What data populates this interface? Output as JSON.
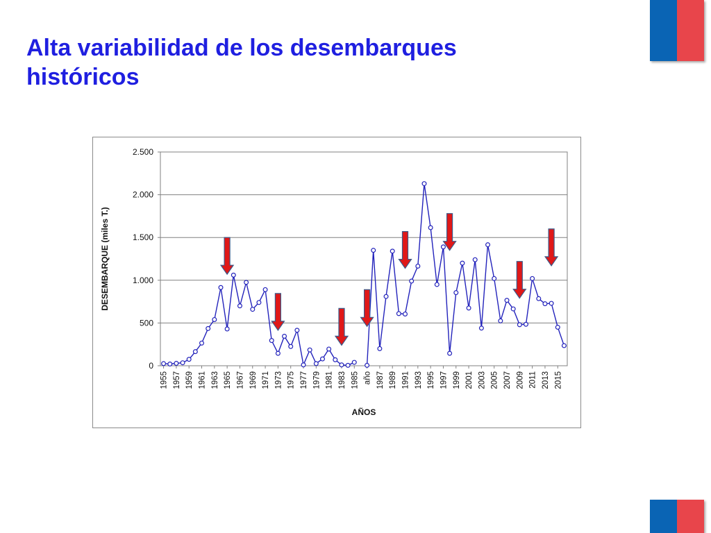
{
  "slide": {
    "title": "Alta variabilidad de los desembarques históricos"
  },
  "colors": {
    "title": "#1f1fe0",
    "series_line": "#2222bb",
    "arrow_fill": "#e01818",
    "arrow_outline": "#3a5a8a",
    "flag_blue": "#0a64b4",
    "flag_red": "#e8454b"
  },
  "chart_data": {
    "type": "line",
    "title": "",
    "xlabel": "AÑOS",
    "ylabel": "DESEMBARQUE (miles T.)",
    "ylim": [
      0,
      2500
    ],
    "grid": "horizontal",
    "y_ticks": [
      0,
      500,
      1000,
      1500,
      2000,
      2500
    ],
    "y_tick_labels": [
      "0",
      "500",
      "1.000",
      "1.500",
      "2.000",
      "2.500"
    ],
    "x_tick_labels": [
      "1955",
      "1957",
      "1959",
      "1961",
      "1963",
      "1965",
      "1967",
      "1969",
      "1971",
      "1973",
      "1975",
      "1977",
      "1979",
      "1981",
      "1983",
      "1985",
      "año",
      "1987",
      "1989",
      "1991",
      "1993",
      "1995",
      "1997",
      "1999",
      "2001",
      "2003",
      "2005",
      "2007",
      "2009",
      "2011",
      "2013",
      "2015"
    ],
    "series": [
      {
        "values": [
          25,
          20,
          28,
          35,
          75,
          165,
          265,
          435,
          540,
          915,
          430,
          1060,
          700,
          975,
          660,
          740,
          890,
          295,
          145,
          345,
          225,
          415,
          10,
          185,
          25,
          80,
          195,
          70,
          10,
          5,
          40,
          null,
          5,
          1350,
          200,
          810,
          1340,
          610,
          605,
          990,
          1165,
          2130,
          1615,
          950,
          1390,
          145,
          855,
          1200,
          675,
          1240,
          440,
          1415,
          1020,
          525,
          765,
          665,
          480,
          485,
          1020,
          785,
          725,
          730,
          450,
          235
        ]
      }
    ],
    "highlight_arrows": [
      {
        "x_index": 10,
        "value": 1070
      },
      {
        "x_index": 18,
        "value": 415
      },
      {
        "x_index": 28,
        "value": 240
      },
      {
        "x_index": 32,
        "value": 460
      },
      {
        "x_index": 38,
        "value": 1140
      },
      {
        "x_index": 45,
        "value": 1350
      },
      {
        "x_index": 56,
        "value": 790
      },
      {
        "x_index": 61,
        "value": 1170
      }
    ]
  }
}
